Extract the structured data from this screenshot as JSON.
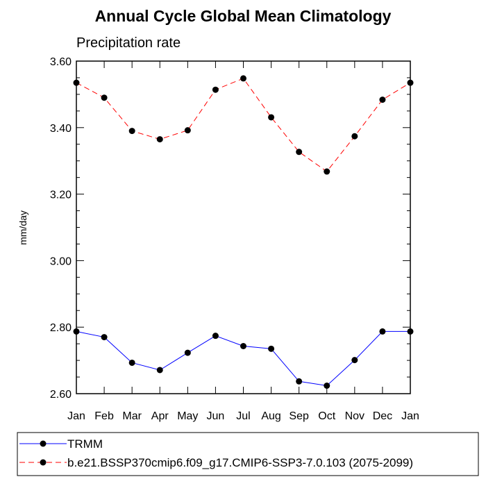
{
  "chart_data": {
    "type": "line",
    "title": "Annual Cycle Global Mean Climatology",
    "subtitle": "Precipitation rate",
    "xlabel": "",
    "ylabel": "mm/day",
    "categories": [
      "Jan",
      "Feb",
      "Mar",
      "Apr",
      "May",
      "Jun",
      "Jul",
      "Aug",
      "Sep",
      "Oct",
      "Nov",
      "Dec",
      "Jan"
    ],
    "ylim": [
      2.6,
      3.6
    ],
    "yticks": [
      "2.60",
      "2.80",
      "3.00",
      "3.20",
      "3.40",
      "3.60"
    ],
    "grid": false,
    "legend_position": "bottom",
    "series": [
      {
        "name": "TRMM",
        "color": "#0000ff",
        "line_style": "solid",
        "marker": "filled-circle",
        "values": [
          2.787,
          2.77,
          2.693,
          2.671,
          2.723,
          2.774,
          2.743,
          2.735,
          2.637,
          2.624,
          2.701,
          2.787,
          2.787
        ]
      },
      {
        "name": "b.e21.BSSP370cmip6.f09_g17.CMIP6-SSP3-7.0.103 (2075-2099)",
        "color": "#ff0000",
        "line_style": "dashed",
        "marker": "filled-circle",
        "values": [
          3.535,
          3.49,
          3.39,
          3.365,
          3.392,
          3.514,
          3.548,
          3.431,
          3.327,
          3.268,
          3.374,
          3.484,
          3.535
        ]
      }
    ]
  }
}
